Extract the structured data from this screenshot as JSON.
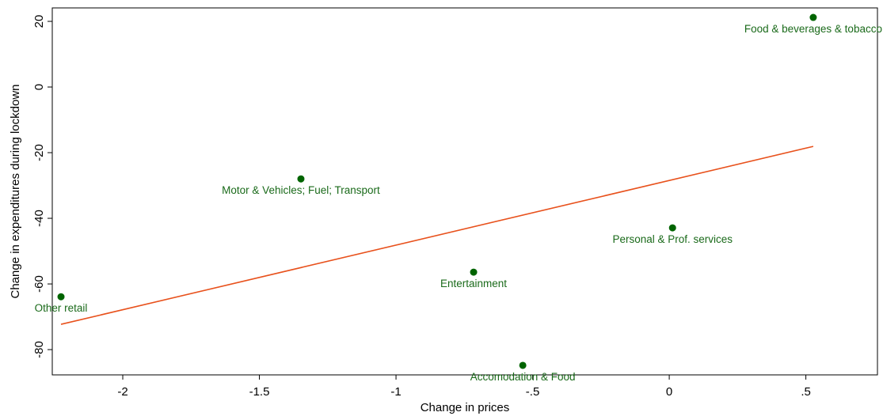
{
  "chart_data": {
    "type": "scatter",
    "x_label": "Change in prices",
    "y_label": "Change in expenditures during lockdown",
    "x": [
      -2.226,
      -1.348,
      -0.716,
      -0.536,
      0.012,
      0.527
    ],
    "values": [
      -63.9,
      -28.0,
      -56.4,
      -84.8,
      -42.9,
      21.2
    ],
    "labels": [
      "Other retail",
      "Motor & Vehicles; Fuel; Transport",
      "Entertainment",
      "Accomodation & Food",
      "Personal & Prof. services",
      "Food & beverages & tobacco"
    ],
    "color": "#006400",
    "fit": {
      "x": [
        -2.226,
        0.527
      ],
      "values": [
        -72.3,
        -18.1
      ],
      "color": "#e8511c"
    },
    "xlim": [
      -2.258,
      0.762
    ],
    "ylim": [
      -87.7,
      24.1
    ],
    "xticks": [
      -2,
      -1.5,
      -1,
      {
        "value": -0.5,
        "label": "-.5"
      },
      0,
      {
        "value": 0.5,
        "label": ".5"
      }
    ],
    "yticks": [
      -80,
      -60,
      -40,
      -20,
      0,
      20
    ],
    "grid": false
  }
}
